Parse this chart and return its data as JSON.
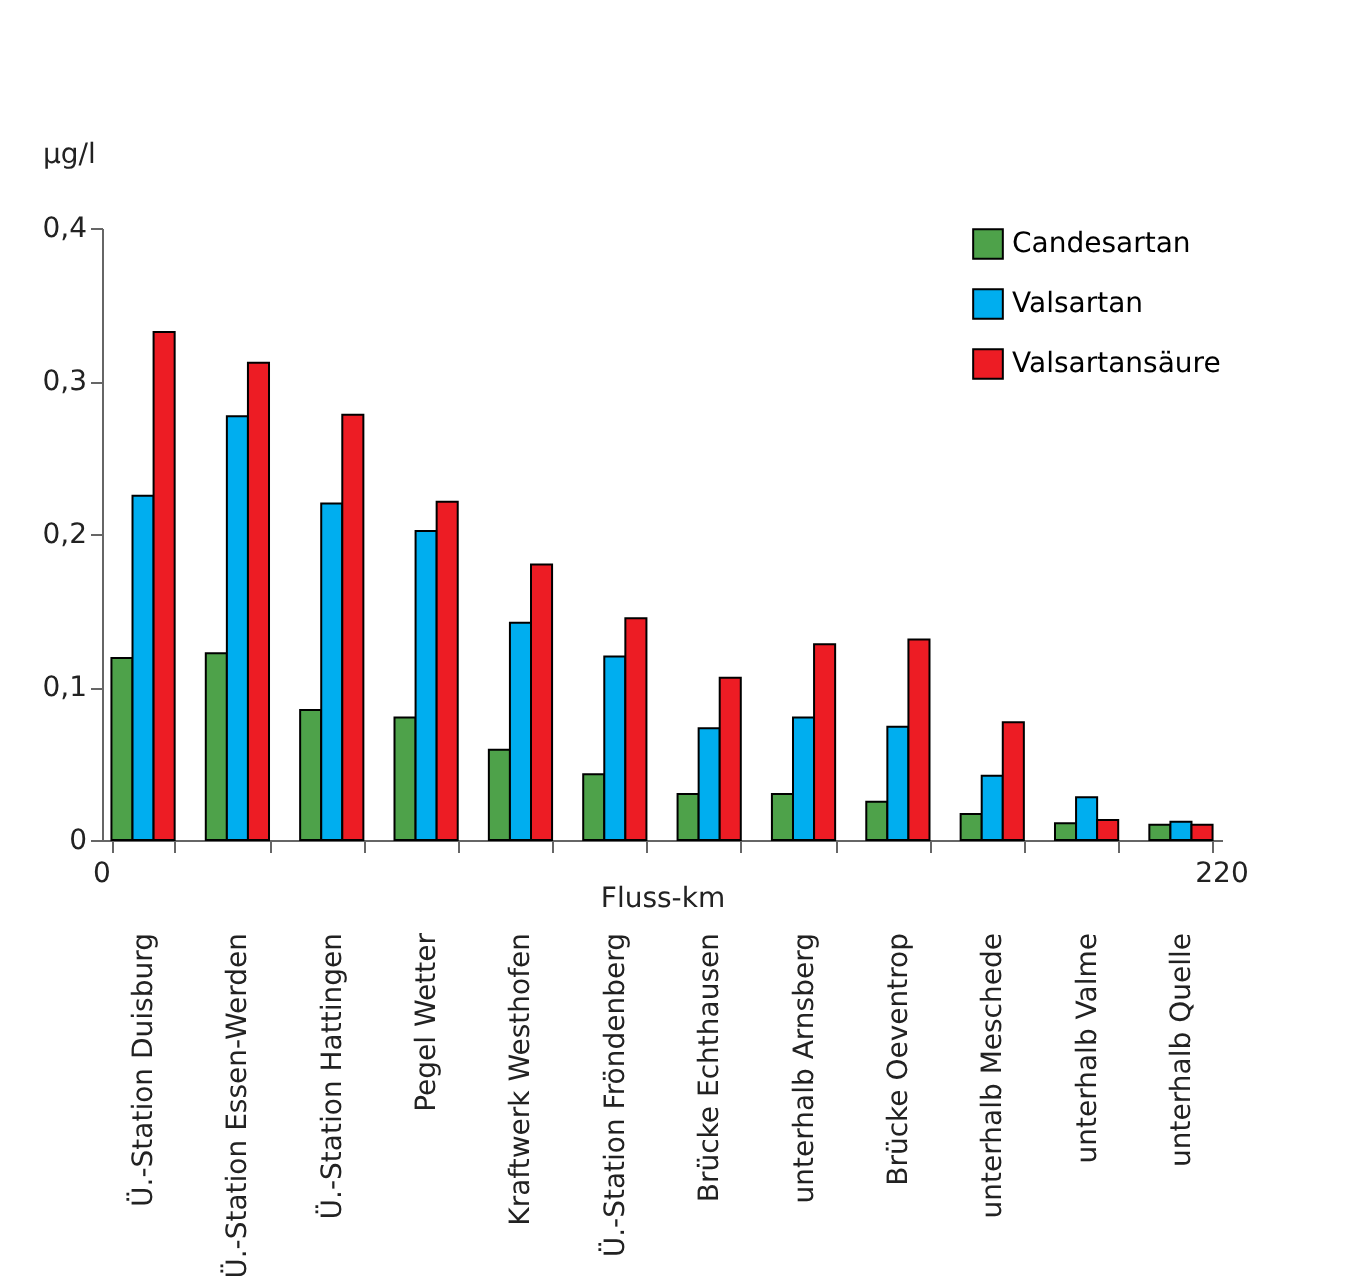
{
  "chart_data": {
    "type": "bar",
    "ylabel": "µg/l",
    "xlabel": "Fluss-km",
    "categories": [
      "Ü.-Station Duisburg",
      "Ü.-Station Essen-Werden",
      "Ü.-Station Hattingen",
      "Pegel Wetter",
      "Kraftwerk Westhofen",
      "Ü.-Station Fröndenberg",
      "Brücke Echthausen",
      "unterhalb Arnsberg",
      "Brücke Oeventrop",
      "unterhalb Meschede",
      "unterhalb Valme",
      "unterhalb Quelle"
    ],
    "series": [
      {
        "name": "Candesartan",
        "color": "#4ea24a",
        "values": [
          0.119,
          0.122,
          0.085,
          0.08,
          0.059,
          0.043,
          0.03,
          0.03,
          0.025,
          0.017,
          0.011,
          0.01
        ]
      },
      {
        "name": "Valsartan",
        "color": "#00aeef",
        "values": [
          0.225,
          0.277,
          0.22,
          0.202,
          0.142,
          0.12,
          0.073,
          0.08,
          0.074,
          0.042,
          0.028,
          0.012
        ]
      },
      {
        "name": "Valsartansäure",
        "color": "#ed1c24",
        "values": [
          0.332,
          0.312,
          0.278,
          0.221,
          0.18,
          0.145,
          0.106,
          0.128,
          0.131,
          0.077,
          0.013,
          0.01
        ]
      }
    ],
    "ylim": [
      0,
      0.4
    ],
    "yticks": [
      0,
      {
        "value": 0.1,
        "label": "0,1"
      },
      {
        "value": 0.2,
        "label": "0,2"
      },
      {
        "value": 0.3,
        "label": "0,3"
      },
      {
        "value": 0.4,
        "label": "0,4"
      }
    ],
    "annotations": [
      "0",
      "220"
    ],
    "legend": "top right",
    "grid": false
  }
}
